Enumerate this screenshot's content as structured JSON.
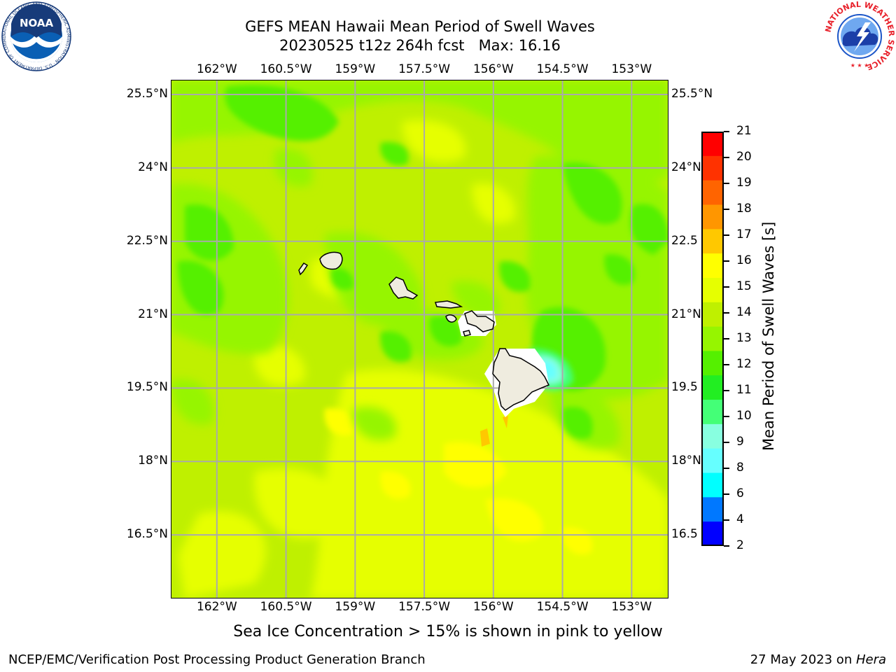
{
  "title": {
    "line1": "GEFS MEAN Hawaii Mean Period of Swell Waves",
    "line2": "20230525 t12z 264h fcst   Max: 16.16"
  },
  "logos": {
    "left": {
      "name": "NOAA",
      "ring_text": "NATIONAL OCEANIC AND ATMOSPHERIC ADMINISTRATION · U.S. DEPARTMENT OF COMMERCE",
      "colors": {
        "blue": "#0a5fb4",
        "navy": "#173b7a"
      }
    },
    "right": {
      "name": "NATIONAL WEATHER SERVICE",
      "colors": {
        "red": "#e8202a",
        "blue": "#1c56c8"
      }
    }
  },
  "map": {
    "lon_labels": [
      "162°W",
      "160.5°W",
      "159°W",
      "157.5°W",
      "156°W",
      "154.5°W",
      "153°W"
    ],
    "lon_values": [
      -162,
      -160.5,
      -159,
      -157.5,
      -156,
      -154.5,
      -153
    ],
    "lat_labels_left": [
      "25.5°N",
      "24°N",
      "22.5°N",
      "21°N",
      "19.5°N",
      "18°N",
      "16.5°N"
    ],
    "lat_labels_right": [
      "25.5°N",
      "24°N",
      "22.5",
      "21°N",
      "19.5",
      "18°N",
      "16.5"
    ],
    "lat_values": [
      25.5,
      24,
      22.5,
      21,
      19.5,
      18,
      16.5
    ],
    "extent": {
      "lon_min": -163,
      "lon_max": -152.2,
      "lat_min": 15.2,
      "lat_max": 25.8
    },
    "gridlines": true,
    "land_color": "#efecdf",
    "background_color": "#bff000",
    "islands": [
      "Niihau",
      "Kauai",
      "Oahu",
      "Molokai",
      "Lanai",
      "Maui",
      "Kahoolawe",
      "Hawaii"
    ]
  },
  "colorbar": {
    "label": "Mean Period of Swell Waves [s]",
    "ticks": [
      "21",
      "20",
      "19",
      "18",
      "17",
      "16",
      "15",
      "14",
      "13",
      "12",
      "11",
      "10",
      "9",
      "8",
      "6",
      "4",
      "2"
    ],
    "colors": [
      "#ff0000",
      "#ff3200",
      "#ff6400",
      "#ff9600",
      "#ffc800",
      "#ffff00",
      "#e6ff00",
      "#bff000",
      "#96f500",
      "#55f000",
      "#22ee22",
      "#44ff77",
      "#88ffe0",
      "#66ffff",
      "#00ffff",
      "#0078ff",
      "#0000ff"
    ]
  },
  "caption": "Sea Ice Concentration > 15% is shown in pink to yellow",
  "footer": {
    "left": "NCEP/EMC/Verification Post Processing Product Generation Branch",
    "right_date": "27 May 2023 on ",
    "right_host": "Hera"
  }
}
